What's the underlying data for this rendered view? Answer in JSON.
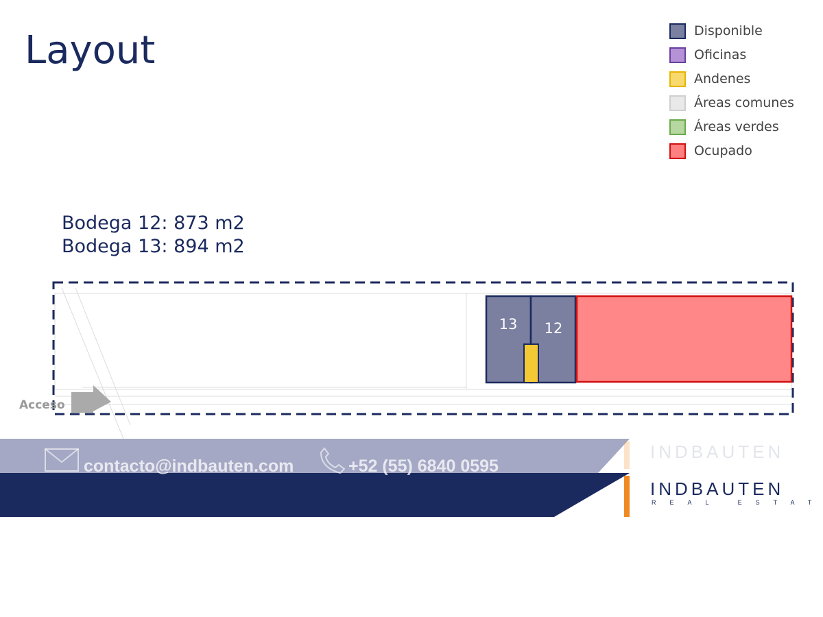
{
  "title": "Layout",
  "legend": {
    "items": [
      {
        "label": "Disponible"
      },
      {
        "label": "Oficinas"
      },
      {
        "label": "Andenes"
      },
      {
        "label": "Áreas comunes"
      },
      {
        "label": "Áreas verdes"
      },
      {
        "label": "Ocupado"
      }
    ]
  },
  "description": [
    "Bodega 12: 873 m2",
    "Bodega 13: 894 m2"
  ],
  "plan": {
    "units": [
      {
        "label": "13"
      },
      {
        "label": "12"
      }
    ],
    "access": "Acceso"
  },
  "footer": {
    "email": "contacto@indbauten.com",
    "phone": "+52 (55) 6840 0595"
  },
  "logo": {
    "name": "INDBAUTEN",
    "tagline": "REAL ESTATE"
  }
}
